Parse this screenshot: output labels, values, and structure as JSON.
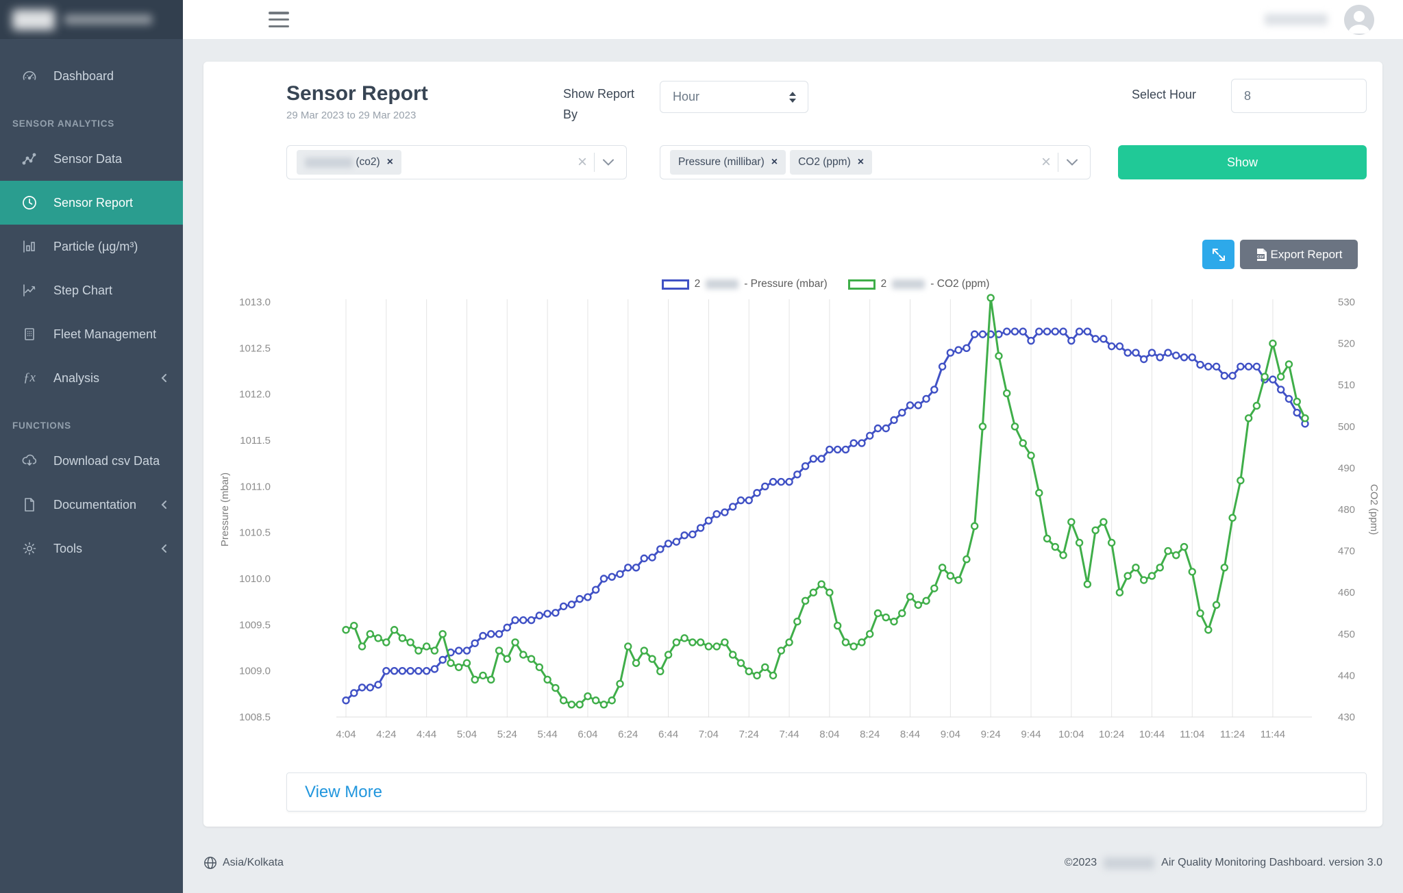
{
  "sidebar": {
    "sections": {
      "analytics": "SENSOR ANALYTICS",
      "functions": "FUNCTIONS"
    },
    "items": {
      "dashboard": "Dashboard",
      "sensor_data": "Sensor Data",
      "sensor_report": "Sensor Report",
      "particle": "Particle (µg/m³)",
      "step_chart": "Step Chart",
      "fleet_management": "Fleet Management",
      "analysis": "Analysis",
      "download_csv": "Download csv Data",
      "documentation": "Documentation",
      "tools": "Tools"
    },
    "active_item": "Sensor Report",
    "colors": {
      "background": "#3D4B5C",
      "header_background": "#323F4E",
      "active_background": "#2A9D8F"
    }
  },
  "header": {
    "title": "Sensor Report",
    "date_range": "29 Mar 2023 to 29 Mar 2023",
    "show_report_by_label": "Show Report By",
    "report_by_value": "Hour",
    "select_hour_label": "Select Hour",
    "hour_value": "8",
    "show_button_label": "Show",
    "show_button_color": "#20C997"
  },
  "filters": {
    "device_select": {
      "tag_visible_text": "(co2)",
      "remove_icon": "×"
    },
    "parameter_select": {
      "tags": [
        "Pressure (millibar)",
        "CO2 (ppm)"
      ],
      "remove_icon": "×"
    }
  },
  "toolbar": {
    "export_label": "Export Report",
    "export_icon": "csv-file-icon",
    "expand_icon": "expand-arrows-icon",
    "colors": {
      "expand_bg": "#2DA9EA",
      "export_bg": "#6B7482"
    }
  },
  "legend": {
    "items": [
      {
        "prefix": "2",
        "suffix": "- Pressure (mbar)",
        "color": "#4051C5"
      },
      {
        "prefix": "2",
        "suffix": "- CO2 (ppm)",
        "color": "#3FAE49"
      }
    ]
  },
  "view_more": {
    "label": "View More",
    "color": "#2196DD"
  },
  "footer": {
    "timezone": "Asia/Kolkata",
    "copyright": "©2023",
    "app_title": "Air Quality Monitoring Dashboard. version 3.0"
  },
  "chart_data": {
    "type": "line",
    "grid": "vertical-only",
    "legend_position": "top",
    "x_tick_labels": [
      "4:04",
      "4:24",
      "4:44",
      "5:04",
      "5:24",
      "5:44",
      "6:04",
      "6:24",
      "6:44",
      "7:04",
      "7:24",
      "7:44",
      "8:04",
      "8:24",
      "8:44",
      "9:04",
      "9:24",
      "9:44",
      "10:04",
      "10:24",
      "10:44",
      "11:04",
      "11:24",
      "11:44"
    ],
    "points_per_tick": 5,
    "times": [
      "4:04",
      "4:08",
      "4:12",
      "4:16",
      "4:20",
      "4:24",
      "4:28",
      "4:32",
      "4:36",
      "4:40",
      "4:44",
      "4:48",
      "4:52",
      "4:56",
      "5:00",
      "5:04",
      "5:08",
      "5:12",
      "5:16",
      "5:20",
      "5:24",
      "5:28",
      "5:32",
      "5:36",
      "5:40",
      "5:44",
      "5:48",
      "5:52",
      "5:56",
      "6:00",
      "6:04",
      "6:08",
      "6:12",
      "6:16",
      "6:20",
      "6:24",
      "6:28",
      "6:32",
      "6:36",
      "6:40",
      "6:44",
      "6:48",
      "6:52",
      "6:56",
      "7:00",
      "7:04",
      "7:08",
      "7:12",
      "7:16",
      "7:20",
      "7:24",
      "7:28",
      "7:32",
      "7:36",
      "7:40",
      "7:44",
      "7:48",
      "7:52",
      "7:56",
      "8:00",
      "8:04",
      "8:08",
      "8:12",
      "8:16",
      "8:20",
      "8:24",
      "8:28",
      "8:32",
      "8:36",
      "8:40",
      "8:44",
      "8:48",
      "8:52",
      "8:56",
      "9:00",
      "9:04",
      "9:08",
      "9:12",
      "9:16",
      "9:20",
      "9:24",
      "9:28",
      "9:32",
      "9:36",
      "9:40",
      "9:44",
      "9:48",
      "9:52",
      "9:56",
      "10:00",
      "10:04",
      "10:08",
      "10:12",
      "10:16",
      "10:20",
      "10:24",
      "10:28",
      "10:32",
      "10:36",
      "10:40",
      "10:44",
      "10:48",
      "10:52",
      "10:56",
      "11:00",
      "11:04",
      "11:08",
      "11:12",
      "11:16",
      "11:20",
      "11:24",
      "11:28",
      "11:32",
      "11:36",
      "11:40",
      "11:44",
      "11:48",
      "11:52",
      "11:56",
      "12:00"
    ],
    "left_axis": {
      "label": "Pressure (mbar)",
      "min": 1008.5,
      "max": 1013.0,
      "step": 0.5
    },
    "right_axis": {
      "label": "CO2 (ppm)",
      "min": 430,
      "max": 530,
      "step": 10
    },
    "series": [
      {
        "name": "Pressure (mbar)",
        "axis": "left",
        "color": "#4051C5",
        "values": [
          1008.68,
          1008.76,
          1008.82,
          1008.82,
          1008.85,
          1009.0,
          1009.0,
          1009.0,
          1009.0,
          1009.0,
          1009.0,
          1009.02,
          1009.12,
          1009.2,
          1009.22,
          1009.22,
          1009.3,
          1009.38,
          1009.4,
          1009.4,
          1009.47,
          1009.55,
          1009.55,
          1009.55,
          1009.6,
          1009.62,
          1009.63,
          1009.7,
          1009.72,
          1009.78,
          1009.8,
          1009.88,
          1010.0,
          1010.02,
          1010.05,
          1010.12,
          1010.12,
          1010.22,
          1010.23,
          1010.32,
          1010.38,
          1010.4,
          1010.47,
          1010.48,
          1010.55,
          1010.63,
          1010.7,
          1010.72,
          1010.78,
          1010.85,
          1010.85,
          1010.93,
          1011.0,
          1011.05,
          1011.05,
          1011.05,
          1011.13,
          1011.22,
          1011.3,
          1011.3,
          1011.4,
          1011.4,
          1011.4,
          1011.47,
          1011.47,
          1011.55,
          1011.63,
          1011.63,
          1011.72,
          1011.8,
          1011.88,
          1011.88,
          1011.95,
          1012.05,
          1012.3,
          1012.45,
          1012.48,
          1012.5,
          1012.65,
          1012.65,
          1012.65,
          1012.65,
          1012.68,
          1012.68,
          1012.68,
          1012.58,
          1012.68,
          1012.68,
          1012.68,
          1012.68,
          1012.58,
          1012.68,
          1012.68,
          1012.6,
          1012.6,
          1012.52,
          1012.52,
          1012.45,
          1012.45,
          1012.38,
          1012.45,
          1012.4,
          1012.45,
          1012.42,
          1012.4,
          1012.4,
          1012.32,
          1012.3,
          1012.3,
          1012.2,
          1012.2,
          1012.3,
          1012.3,
          1012.3,
          1012.16,
          1012.16,
          1012.05,
          1011.95,
          1011.8,
          1011.68
        ]
      },
      {
        "name": "CO2 (ppm)",
        "axis": "right",
        "color": "#3FAE49",
        "values": [
          451,
          452,
          447,
          450,
          449,
          448,
          451,
          449,
          448,
          446,
          447,
          446,
          450,
          443,
          442,
          443,
          439,
          440,
          439,
          446,
          444,
          448,
          445,
          444,
          442,
          439,
          437,
          434,
          433,
          433,
          435,
          434,
          433,
          434,
          438,
          447,
          443,
          446,
          444,
          441,
          445,
          448,
          449,
          448,
          448,
          447,
          447,
          448,
          445,
          443,
          441,
          440,
          442,
          440,
          446,
          448,
          453,
          458,
          460,
          462,
          460,
          452,
          448,
          447,
          448,
          450,
          455,
          454,
          453,
          455,
          459,
          457,
          458,
          461,
          466,
          464,
          463,
          468,
          476,
          500,
          531,
          517,
          508,
          500,
          496,
          493,
          484,
          473,
          471,
          469,
          477,
          472,
          462,
          475,
          477,
          472,
          460,
          464,
          466,
          463,
          464,
          466,
          470,
          469,
          471,
          465,
          455,
          451,
          457,
          466,
          478,
          487,
          502,
          505,
          512,
          520,
          512,
          515,
          506,
          502
        ]
      }
    ]
  }
}
